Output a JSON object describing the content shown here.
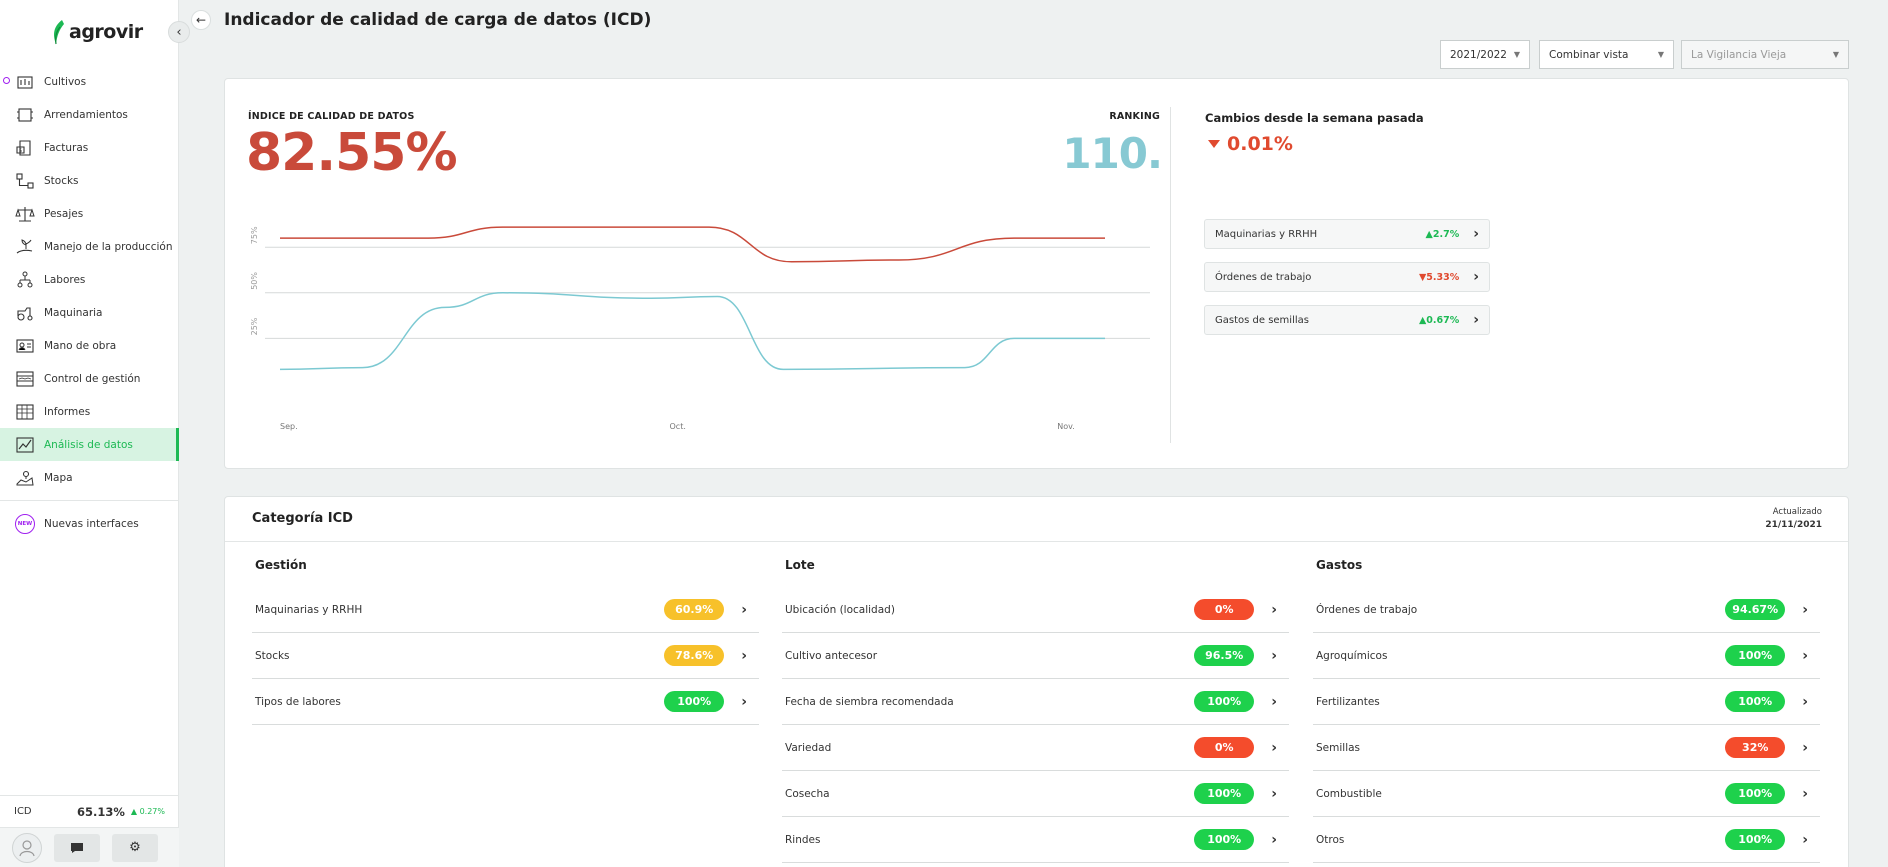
{
  "app": {
    "logo_text": "agrovir"
  },
  "sidebar": {
    "items": [
      {
        "label": "Cultivos",
        "icon": "crop-icon"
      },
      {
        "label": "Arrendamientos",
        "icon": "lease-icon"
      },
      {
        "label": "Facturas",
        "icon": "invoice-icon"
      },
      {
        "label": "Stocks",
        "icon": "stock-icon"
      },
      {
        "label": "Pesajes",
        "icon": "scale-icon"
      },
      {
        "label": "Manejo de la producción",
        "icon": "plant-hand-icon"
      },
      {
        "label": "Labores",
        "icon": "tasks-icon"
      },
      {
        "label": "Maquinaria",
        "icon": "tractor-icon"
      },
      {
        "label": "Mano de obra",
        "icon": "worker-card-icon"
      },
      {
        "label": "Control de gestión",
        "icon": "control-icon"
      },
      {
        "label": "Informes",
        "icon": "report-icon"
      },
      {
        "label": "Análisis de datos",
        "icon": "analytics-icon"
      },
      {
        "label": "Mapa",
        "icon": "map-icon"
      }
    ],
    "new_interfaces": {
      "label": "Nuevas interfaces",
      "badge": "NEW"
    },
    "icd": {
      "label": "ICD",
      "value": "65.13%",
      "change": "0.27%"
    }
  },
  "header": {
    "title": "Indicador de calidad de carga de datos (ICD)",
    "selects": {
      "season": "2021/2022",
      "view": "Combinar vista",
      "farm": "La Vigilancia Vieja"
    }
  },
  "summary": {
    "index_label": "ÍNDICE DE CALIDAD DE DATOS",
    "index_value": "82.55%",
    "ranking_label": "RANKING",
    "ranking_value": "110.",
    "changes_title": "Cambios desde la semana pasada",
    "changes_value": "0.01%",
    "changes": [
      {
        "name": "Maquinarias y RRHH",
        "value": "2.7%",
        "dir": "up"
      },
      {
        "name": "Órdenes de trabajo",
        "value": "5.33%",
        "dir": "down"
      },
      {
        "name": "Gastos de semillas",
        "value": "0.67%",
        "dir": "up"
      }
    ]
  },
  "chart_data": {
    "type": "line",
    "x": [
      "Sep.",
      "Oct.",
      "Nov."
    ],
    "y_ticks": [
      "75%",
      "50%",
      "25%"
    ],
    "ylim": [
      0,
      100
    ],
    "series": [
      {
        "color": "#c94a3a",
        "points": [
          [
            0,
            80
          ],
          [
            0.18,
            80
          ],
          [
            0.27,
            86
          ],
          [
            0.52,
            86
          ],
          [
            0.62,
            67
          ],
          [
            0.75,
            68
          ],
          [
            0.89,
            80
          ],
          [
            1,
            80
          ]
        ]
      },
      {
        "color": "#7cc9d2",
        "points": [
          [
            0,
            8
          ],
          [
            0.1,
            9
          ],
          [
            0.2,
            42
          ],
          [
            0.27,
            50
          ],
          [
            0.45,
            47
          ],
          [
            0.53,
            48
          ],
          [
            0.61,
            8
          ],
          [
            0.83,
            9
          ],
          [
            0.89,
            25
          ],
          [
            1,
            25
          ]
        ]
      }
    ]
  },
  "categories": {
    "title": "Categoría ICD",
    "updated_label": "Actualizado",
    "updated_date": "21/11/2021",
    "columns": [
      {
        "title": "Gestión",
        "rows": [
          {
            "name": "Maquinarias y RRHH",
            "value": "60.9%",
            "color": "#f7c12a"
          },
          {
            "name": "Stocks",
            "value": "78.6%",
            "color": "#f7c12a"
          },
          {
            "name": "Tipos de labores",
            "value": "100%",
            "color": "#1ed14c"
          }
        ]
      },
      {
        "title": "Lote",
        "rows": [
          {
            "name": "Ubicación (localidad)",
            "value": "0%",
            "color": "#f44c2c"
          },
          {
            "name": "Cultivo antecesor",
            "value": "96.5%",
            "color": "#1ed14c"
          },
          {
            "name": "Fecha de siembra recomendada",
            "value": "100%",
            "color": "#1ed14c"
          },
          {
            "name": "Variedad",
            "value": "0%",
            "color": "#f44c2c"
          },
          {
            "name": "Cosecha",
            "value": "100%",
            "color": "#1ed14c"
          },
          {
            "name": "Rindes",
            "value": "100%",
            "color": "#1ed14c"
          }
        ]
      },
      {
        "title": "Gastos",
        "rows": [
          {
            "name": "Órdenes de trabajo",
            "value": "94.67%",
            "color": "#1ed14c"
          },
          {
            "name": "Agroquímicos",
            "value": "100%",
            "color": "#1ed14c"
          },
          {
            "name": "Fertilizantes",
            "value": "100%",
            "color": "#1ed14c"
          },
          {
            "name": "Semillas",
            "value": "32%",
            "color": "#f44c2c"
          },
          {
            "name": "Combustible",
            "value": "100%",
            "color": "#1ed14c"
          },
          {
            "name": "Otros",
            "value": "100%",
            "color": "#1ed14c"
          }
        ]
      }
    ]
  }
}
